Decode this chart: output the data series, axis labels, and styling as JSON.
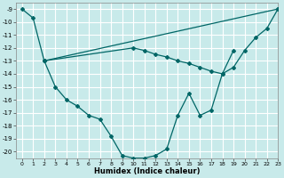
{
  "xlabel": "Humidex (Indice chaleur)",
  "ylabel": "",
  "bg_color": "#c8eaea",
  "grid_color": "#ffffff",
  "line_color": "#006666",
  "xlim": [
    -0.5,
    23
  ],
  "ylim": [
    -20.5,
    -8.5
  ],
  "yticks": [
    -9,
    -10,
    -11,
    -12,
    -13,
    -14,
    -15,
    -16,
    -17,
    -18,
    -19,
    -20
  ],
  "xticks": [
    0,
    1,
    2,
    3,
    4,
    5,
    6,
    7,
    8,
    9,
    10,
    11,
    12,
    13,
    14,
    15,
    16,
    17,
    18,
    19,
    20,
    21,
    22,
    23
  ],
  "curve1_x": [
    0,
    1,
    2,
    3,
    4,
    5,
    6,
    7,
    8,
    9,
    10,
    11,
    12,
    13,
    14,
    15,
    16,
    17,
    18,
    19,
    20,
    21,
    22,
    23
  ],
  "curve1_y": [
    -9.0,
    -9.7,
    -13.0,
    -15.0,
    -16.0,
    -16.5,
    -17.2,
    -17.5,
    -18.8,
    -20.3,
    -20.5,
    -20.5,
    -20.3,
    -19.8,
    -17.2,
    -15.5,
    -17.2,
    -16.8,
    -14.0,
    -13.5,
    -12.2,
    -11.2,
    -10.5,
    -9.0
  ],
  "curve2_x": [
    2,
    23
  ],
  "curve2_y": [
    -13.0,
    -9.0
  ],
  "curve3_x": [
    2,
    10,
    11,
    12,
    13,
    14,
    15,
    16,
    17,
    18,
    19
  ],
  "curve3_y": [
    -13.0,
    -12.0,
    -12.2,
    -12.5,
    -12.7,
    -13.0,
    -13.2,
    -13.5,
    -13.8,
    -14.0,
    -12.2
  ]
}
